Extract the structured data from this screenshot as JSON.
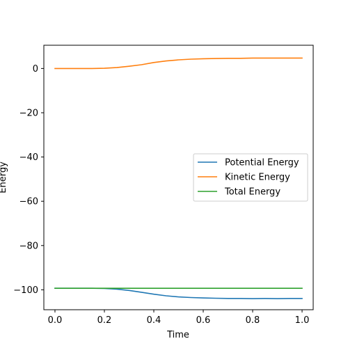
{
  "chart_data": {
    "type": "line",
    "title": "",
    "xlabel": "Time",
    "ylabel": "Energy",
    "xlim": [
      -0.045,
      1.045
    ],
    "ylim": [
      -109,
      10.5
    ],
    "xticks": [
      0.0,
      0.2,
      0.4,
      0.6,
      0.8,
      1.0
    ],
    "xtick_labels": [
      "0.0",
      "0.2",
      "0.4",
      "0.6",
      "0.8",
      "1.0"
    ],
    "yticks": [
      0,
      -20,
      -40,
      -60,
      -80,
      -100
    ],
    "ytick_labels": [
      "0",
      "−20",
      "−40",
      "−60",
      "−80",
      "−100"
    ],
    "grid": false,
    "legend_position": "center-right",
    "x": [
      0.0,
      0.05,
      0.1,
      0.15,
      0.2,
      0.25,
      0.3,
      0.35,
      0.4,
      0.45,
      0.5,
      0.55,
      0.6,
      0.65,
      0.7,
      0.75,
      0.8,
      0.85,
      0.9,
      0.95,
      1.0
    ],
    "series": [
      {
        "name": "Potential Energy",
        "color": "#1f77b4",
        "values": [
          -99.3,
          -99.3,
          -99.3,
          -99.3,
          -99.4,
          -99.7,
          -100.3,
          -101.1,
          -102.0,
          -102.7,
          -103.2,
          -103.5,
          -103.7,
          -103.8,
          -103.9,
          -103.9,
          -104.0,
          -103.9,
          -104.0,
          -103.9,
          -103.9
        ]
      },
      {
        "name": "Kinetic Energy",
        "color": "#ff7f0e",
        "values": [
          0.0,
          0.0,
          0.0,
          0.0,
          0.1,
          0.4,
          1.0,
          1.7,
          2.7,
          3.4,
          3.9,
          4.2,
          4.4,
          4.5,
          4.6,
          4.6,
          4.7,
          4.7,
          4.7,
          4.7,
          4.7
        ]
      },
      {
        "name": "Total Energy",
        "color": "#2ca02c",
        "values": [
          -99.3,
          -99.3,
          -99.3,
          -99.3,
          -99.3,
          -99.3,
          -99.3,
          -99.3,
          -99.3,
          -99.3,
          -99.3,
          -99.3,
          -99.3,
          -99.3,
          -99.3,
          -99.3,
          -99.3,
          -99.3,
          -99.3,
          -99.3,
          -99.3
        ]
      }
    ]
  }
}
